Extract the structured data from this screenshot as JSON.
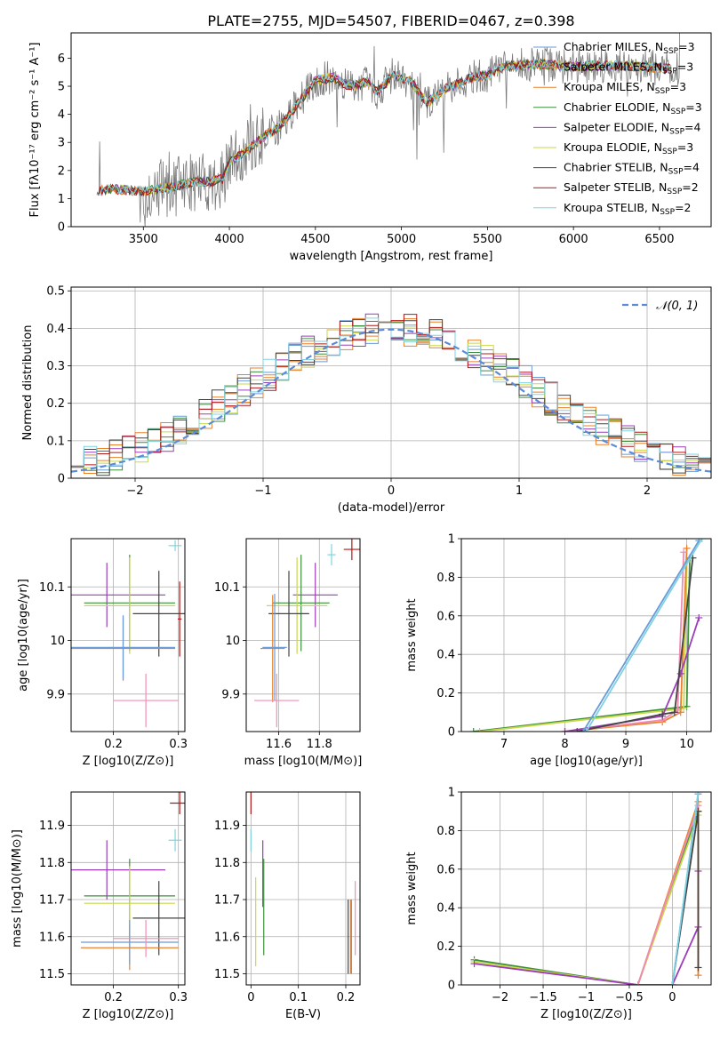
{
  "figure_title": "PLATE=2755, MJD=54507, FIBERID=0467, z=0.398",
  "model_colors": [
    "#6a9bd8",
    "#e8812a",
    "#e8812a",
    "#3c8f3c",
    "#9c3cb8",
    "#c8d84a",
    "#444444",
    "#b01818",
    "#7fd3e0"
  ],
  "chart_data": [
    {
      "id": "spectrum",
      "type": "line",
      "title": "PLATE=2755, MJD=54507, FIBERID=0467, z=0.398",
      "xlabel": "wavelength [Angstrom, rest frame]",
      "ylabel": "Flux [fλ10⁻¹⁷ erg cm⁻² s⁻¹ A⁻¹]",
      "xlim": [
        3080,
        6800
      ],
      "ylim": [
        0,
        6.9
      ],
      "xticks": [
        3500,
        4000,
        4500,
        5000,
        5500,
        6000,
        6500
      ],
      "yticks": [
        0,
        1,
        2,
        3,
        4,
        5,
        6
      ],
      "grid": false,
      "legend_position": "top-right",
      "legend": [
        {
          "name": "Chabrier MILES, N",
          "sub": "SSP",
          "tail": "=3",
          "color": "#6a9bd8"
        },
        {
          "name": "Salpeter MILES, N",
          "sub": "SSP",
          "tail": "=3",
          "color": "#e8812a"
        },
        {
          "name": "Kroupa MILES, N",
          "sub": "SSP",
          "tail": "=3",
          "color": "#e8812a"
        },
        {
          "name": "Chabrier ELODIE, N",
          "sub": "SSP",
          "tail": "=3",
          "color": "#3c8f3c"
        },
        {
          "name": "Salpeter ELODIE, N",
          "sub": "SSP",
          "tail": "=4",
          "color": "#9c3cb8"
        },
        {
          "name": "Kroupa ELODIE, N",
          "sub": "SSP",
          "tail": "=3",
          "color": "#c8d84a"
        },
        {
          "name": "Chabrier STELIB, N",
          "sub": "SSP",
          "tail": "=4",
          "color": "#444444"
        },
        {
          "name": "Salpeter STELIB, N",
          "sub": "SSP",
          "tail": "=2",
          "color": "#b01818"
        },
        {
          "name": "Kroupa STELIB, N",
          "sub": "SSP",
          "tail": "=2",
          "color": "#7fd3e0"
        }
      ],
      "continuum_knots": {
        "x": [
          3230,
          3260,
          3300,
          3400,
          3500,
          3600,
          3700,
          3800,
          3900,
          3960,
          4000,
          4100,
          4200,
          4300,
          4400,
          4500,
          4600,
          4700,
          4800,
          4860,
          4950,
          5050,
          5150,
          5250,
          5300,
          5400,
          5500,
          5600,
          5800,
          6000,
          6200,
          6400,
          6600
        ],
        "y": [
          1.2,
          1.3,
          1.35,
          1.3,
          1.25,
          1.35,
          1.45,
          1.6,
          1.6,
          1.7,
          2.3,
          2.7,
          3.2,
          3.6,
          4.4,
          5.2,
          5.3,
          5.0,
          5.15,
          4.8,
          5.4,
          5.2,
          4.4,
          4.9,
          5.0,
          5.3,
          5.4,
          5.7,
          5.8,
          5.7,
          5.75,
          5.7,
          5.6
        ]
      },
      "observed_noise_amplitude": 0.9
    },
    {
      "id": "residuals",
      "type": "line",
      "xlabel": "(data-model)/error",
      "ylabel": "Normed distribution",
      "xlim": [
        -2.5,
        2.5
      ],
      "ylim": [
        0,
        0.51
      ],
      "xticks": [
        -2,
        -1,
        0,
        1,
        2
      ],
      "yticks": [
        0.0,
        0.1,
        0.2,
        0.3,
        0.4,
        0.5
      ],
      "grid": true,
      "legend_position": "top-right",
      "legend": [
        {
          "name": "𝒩(0, 1)",
          "style": "dashed",
          "color": "#5b8ad6"
        }
      ],
      "bin_width": 0.1,
      "histogram_bins_from": -2.5,
      "normal_curve": {
        "mean": 0,
        "sd": 1
      }
    },
    {
      "id": "age-vs-Z",
      "type": "scatter",
      "xlabel": "Z [log10(Z/Z⊙)]",
      "ylabel": "age  [log10(age/yr)]",
      "xlim": [
        0.135,
        0.31
      ],
      "ylim": [
        9.83,
        10.19
      ],
      "xticks": [
        0.2,
        0.3
      ],
      "yticks": [
        9.9,
        10.0,
        10.1
      ],
      "grid": true,
      "errorbars": [
        {
          "color": "#9c3cb8",
          "x": 0.19,
          "xerr": 0.09,
          "y": 10.085,
          "yerr": 0.06
        },
        {
          "color": "#3c8f3c",
          "x": 0.225,
          "xerr": 0.07,
          "y": 10.07,
          "yerr": 0.09
        },
        {
          "color": "#c8d84a",
          "x": 0.225,
          "xerr": 0.07,
          "y": 10.065,
          "yerr": 0.09
        },
        {
          "color": "#444444",
          "x": 0.27,
          "xerr": 0.04,
          "y": 10.05,
          "yerr": 0.08
        },
        {
          "color": "#e8812a",
          "x": 0.215,
          "xerr": 0.08,
          "y": 9.985,
          "yerr": 0.06
        },
        {
          "color": "#6a9bd8",
          "x": 0.215,
          "xerr": 0.08,
          "y": 9.987,
          "yerr": 0.06
        },
        {
          "color": "#f08cb4",
          "x": 0.25,
          "xerr": 0.05,
          "y": 9.888,
          "yerr": 0.05
        },
        {
          "color": "#7fd3e0",
          "x": 0.295,
          "xerr": 0.01,
          "y": 10.177,
          "yerr": 0.01
        },
        {
          "color": "#b01818",
          "x": 0.302,
          "xerr": 0.003,
          "y": 10.04,
          "yerr": 0.07
        }
      ]
    },
    {
      "id": "age-vs-mass",
      "type": "scatter",
      "xlabel": "mass [log10(M/M⊙)]",
      "ylabel": "",
      "xlim": [
        11.44,
        12.0
      ],
      "ylim": [
        9.83,
        10.19
      ],
      "xticks": [
        11.6,
        11.8
      ],
      "yticks": [
        9.9,
        10.0,
        10.1
      ],
      "grid": true,
      "errorbars": [
        {
          "color": "#9c3cb8",
          "x": 11.78,
          "xerr": 0.11,
          "y": 10.085,
          "yerr": 0.06
        },
        {
          "color": "#3c8f3c",
          "x": 11.71,
          "xerr": 0.14,
          "y": 10.07,
          "yerr": 0.09
        },
        {
          "color": "#c8d84a",
          "x": 11.69,
          "xerr": 0.15,
          "y": 10.065,
          "yerr": 0.09
        },
        {
          "color": "#444444",
          "x": 11.65,
          "xerr": 0.1,
          "y": 10.05,
          "yerr": 0.08
        },
        {
          "color": "#e8812a",
          "x": 11.57,
          "xerr": 0.06,
          "y": 9.985,
          "yerr": 0.1
        },
        {
          "color": "#6a9bd8",
          "x": 11.58,
          "xerr": 0.06,
          "y": 9.987,
          "yerr": 0.1
        },
        {
          "color": "#f08cb4",
          "x": 11.59,
          "xerr": 0.11,
          "y": 9.888,
          "yerr": 0.05
        },
        {
          "color": "#7fd3e0",
          "x": 11.86,
          "xerr": 0.02,
          "y": 10.16,
          "yerr": 0.02
        },
        {
          "color": "#b01818",
          "x": 11.96,
          "xerr": 0.04,
          "y": 10.17,
          "yerr": 0.02
        }
      ]
    },
    {
      "id": "weight-vs-age",
      "type": "line",
      "xlabel": "age  [log10(age/yr)]",
      "ylabel": "mass weight",
      "xlim": [
        6.3,
        10.4
      ],
      "ylim": [
        0,
        1.0
      ],
      "xticks": [
        7,
        8,
        9,
        10
      ],
      "yticks": [
        0.0,
        0.2,
        0.4,
        0.6,
        0.8,
        1.0
      ],
      "grid": true,
      "series": [
        {
          "color": "#3c8f3c",
          "x": [
            6.5,
            10.0,
            10.05
          ],
          "y": [
            0.0,
            0.13,
            0.9
          ]
        },
        {
          "color": "#c8d84a",
          "x": [
            6.6,
            9.95,
            10.0
          ],
          "y": [
            0.0,
            0.12,
            0.88
          ]
        },
        {
          "color": "#e8812a",
          "x": [
            8.0,
            9.6,
            9.9,
            10.0
          ],
          "y": [
            0.0,
            0.05,
            0.1,
            0.95
          ]
        },
        {
          "color": "#f08cb4",
          "x": [
            8.0,
            9.6,
            9.85,
            9.95
          ],
          "y": [
            0.0,
            0.06,
            0.11,
            0.93
          ]
        },
        {
          "color": "#9c3cb8",
          "x": [
            8.0,
            9.6,
            9.9,
            10.2
          ],
          "y": [
            0.0,
            0.08,
            0.3,
            0.59
          ]
        },
        {
          "color": "#444444",
          "x": [
            8.2,
            9.6,
            9.8,
            10.1
          ],
          "y": [
            0.0,
            0.09,
            0.1,
            0.9
          ]
        },
        {
          "color": "#6a9bd8",
          "x": [
            8.3,
            10.2
          ],
          "y": [
            0.0,
            0.99
          ]
        },
        {
          "color": "#7fd3e0",
          "x": [
            8.35,
            10.25
          ],
          "y": [
            0.0,
            1.0
          ]
        }
      ]
    },
    {
      "id": "mass-vs-Z",
      "type": "scatter",
      "xlabel": "Z [log10(Z/Z⊙)]",
      "ylabel": "mass [log10(M/M⊙)]",
      "xlim": [
        0.135,
        0.31
      ],
      "ylim": [
        11.47,
        11.99
      ],
      "xticks": [
        0.2,
        0.3
      ],
      "yticks": [
        11.5,
        11.6,
        11.7,
        11.8,
        11.9
      ],
      "grid": true,
      "errorbars": [
        {
          "color": "#9c3cb8",
          "x": 0.19,
          "xerr": 0.09,
          "y": 11.78,
          "yerr": 0.08
        },
        {
          "color": "#3c8f3c",
          "x": 0.225,
          "xerr": 0.07,
          "y": 11.71,
          "yerr": 0.1
        },
        {
          "color": "#c8d84a",
          "x": 0.225,
          "xerr": 0.07,
          "y": 11.69,
          "yerr": 0.1
        },
        {
          "color": "#444444",
          "x": 0.27,
          "xerr": 0.04,
          "y": 11.65,
          "yerr": 0.1
        },
        {
          "color": "#e8812a",
          "x": 0.225,
          "xerr": 0.075,
          "y": 11.57,
          "yerr": 0.06
        },
        {
          "color": "#6a9bd8",
          "x": 0.225,
          "xerr": 0.075,
          "y": 11.585,
          "yerr": 0.06
        },
        {
          "color": "#f08cb4",
          "x": 0.25,
          "xerr": 0.05,
          "y": 11.595,
          "yerr": 0.05
        },
        {
          "color": "#7fd3e0",
          "x": 0.295,
          "xerr": 0.01,
          "y": 11.86,
          "yerr": 0.03
        },
        {
          "color": "#b01818",
          "x": 0.302,
          "xerr": 0.015,
          "y": 11.96,
          "yerr": 0.03
        }
      ]
    },
    {
      "id": "mass-vs-ebv",
      "type": "scatter",
      "xlabel": "E(B-V)",
      "ylabel": "",
      "xlim": [
        -0.01,
        0.23
      ],
      "ylim": [
        11.47,
        11.99
      ],
      "xticks": [
        0.0,
        0.1,
        0.2
      ],
      "yticks": [
        11.5,
        11.6,
        11.7,
        11.8,
        11.9
      ],
      "grid": true,
      "errorbars": [
        {
          "color": "#b01818",
          "x": 0.0,
          "xerr": 0.0,
          "y": 11.96,
          "yerr": 0.03
        },
        {
          "color": "#7fd3e0",
          "x": 0.0,
          "xerr": 0.0,
          "y": 11.86,
          "yerr": 0.03
        },
        {
          "color": "#9c3cb8",
          "x": 0.025,
          "xerr": 0.0,
          "y": 11.77,
          "yerr": 0.09
        },
        {
          "color": "#3c8f3c",
          "x": 0.027,
          "xerr": 0.0,
          "y": 11.68,
          "yerr": 0.13
        },
        {
          "color": "#c8d84a",
          "x": 0.01,
          "xerr": 0.0,
          "y": 11.64,
          "yerr": 0.12
        },
        {
          "color": "#444444",
          "x": 0.205,
          "xerr": 0.0,
          "y": 11.6,
          "yerr": 0.1
        },
        {
          "color": "#e8812a",
          "x": 0.21,
          "xerr": 0.0,
          "y": 11.6,
          "yerr": 0.1
        },
        {
          "color": "#6a9bd8",
          "x": 0.212,
          "xerr": 0.0,
          "y": 11.6,
          "yerr": 0.1
        },
        {
          "color": "#f08cb4",
          "x": 0.22,
          "xerr": 0.0,
          "y": 11.65,
          "yerr": 0.1
        }
      ]
    },
    {
      "id": "weight-vs-Z",
      "type": "line",
      "xlabel": "Z [log10(Z/Z⊙)]",
      "ylabel": "mass weight",
      "xlim": [
        -2.45,
        0.45
      ],
      "ylim": [
        0,
        1.0
      ],
      "xticks": [
        -2.0,
        -1.5,
        -1.0,
        -0.5,
        0.0
      ],
      "yticks": [
        0.0,
        0.2,
        0.4,
        0.6,
        0.8,
        1.0
      ],
      "grid": true,
      "series": [
        {
          "color": "#3c8f3c",
          "x": [
            -2.3,
            -0.4,
            0.3
          ],
          "y": [
            0.13,
            0.0,
            0.9
          ]
        },
        {
          "color": "#c8d84a",
          "x": [
            -2.3,
            -0.4,
            0.3
          ],
          "y": [
            0.12,
            0.0,
            0.88
          ]
        },
        {
          "color": "#9c3cb8",
          "x": [
            -2.3,
            -0.4,
            0.0,
            0.3,
            0.3
          ],
          "y": [
            0.11,
            0.0,
            0.0,
            0.3,
            0.59
          ]
        },
        {
          "color": "#e8812a",
          "x": [
            -0.4,
            0.3,
            0.3
          ],
          "y": [
            0.0,
            0.95,
            0.05
          ]
        },
        {
          "color": "#f08cb4",
          "x": [
            -0.4,
            0.3
          ],
          "y": [
            0.0,
            0.93
          ]
        },
        {
          "color": "#444444",
          "x": [
            0.0,
            0.3,
            0.3
          ],
          "y": [
            0.0,
            0.9,
            0.09
          ]
        },
        {
          "color": "#6a9bd8",
          "x": [
            0.0,
            0.3
          ],
          "y": [
            0.0,
            0.99
          ]
        },
        {
          "color": "#7fd3e0",
          "x": [
            0.0,
            0.3
          ],
          "y": [
            0.0,
            1.0
          ]
        }
      ]
    }
  ]
}
